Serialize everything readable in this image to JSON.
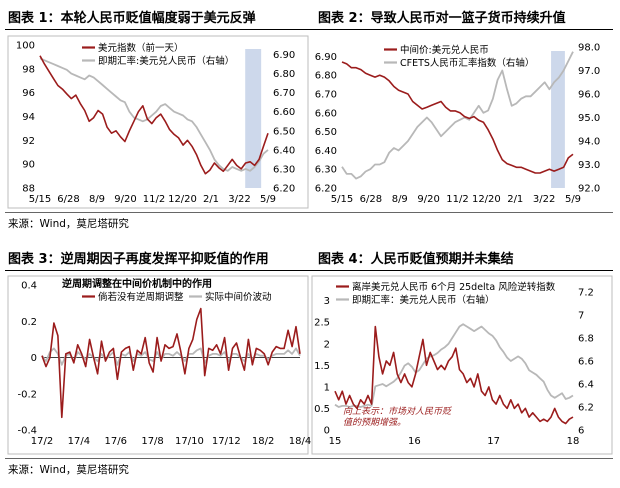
{
  "panels": [
    {
      "title": "图表 1：本轮人民币贬值幅度弱于美元反弹",
      "chart_data": {
        "type": "line",
        "x_ticks": [
          "5/15",
          "6/28",
          "8/9",
          "9/20",
          "11/2",
          "12/20",
          "2/1",
          "3/22",
          "5/9"
        ],
        "ylim_left": [
          88,
          100
        ],
        "yticks_left": [
          88,
          90,
          92,
          94,
          96,
          98,
          100
        ],
        "ylim_right": [
          6.2,
          6.95
        ],
        "yticks_right": [
          "6.20",
          "6.30",
          "6.40",
          "6.50",
          "6.60",
          "6.70",
          "6.80",
          "6.90"
        ],
        "legend": [
          {
            "label": "美元指数（前一天）",
            "color": "#9b1c1c",
            "axis": "left"
          },
          {
            "label": "即期汇率:美元兑人民币（右轴）",
            "color": "#b8b8b8",
            "axis": "right"
          }
        ],
        "highlight": {
          "x_from": 0.9,
          "x_to": 0.97
        },
        "series": [
          {
            "name": "美元指数（前一天）",
            "axis": "left",
            "values": [
              99.1,
              98.4,
              97.8,
              97.2,
              96.6,
              96.3,
              95.9,
              95.5,
              95.8,
              95.1,
              94.5,
              93.6,
              93.9,
              94.5,
              94.2,
              93.1,
              92.6,
              92.8,
              92.3,
              91.9,
              92.8,
              93.6,
              94.4,
              94.9,
              93.8,
              93.4,
              93.9,
              94.2,
              93.6,
              92.9,
              92.5,
              92.2,
              91.6,
              92.0,
              91.5,
              90.8,
              89.9,
              89.2,
              89.5,
              90.1,
              89.7,
              89.4,
              89.9,
              90.4,
              89.9,
              89.6,
              90.1,
              90.2,
              89.9,
              90.4,
              91.5,
              92.6
            ]
          },
          {
            "name": "即期汇率:美元兑人民币（右轴）",
            "axis": "right",
            "values": [
              6.88,
              6.87,
              6.86,
              6.85,
              6.84,
              6.83,
              6.82,
              6.8,
              6.79,
              6.78,
              6.77,
              6.79,
              6.78,
              6.76,
              6.74,
              6.72,
              6.7,
              6.68,
              6.66,
              6.65,
              6.6,
              6.57,
              6.56,
              6.55,
              6.56,
              6.58,
              6.6,
              6.63,
              6.64,
              6.62,
              6.6,
              6.59,
              6.58,
              6.56,
              6.55,
              6.52,
              6.48,
              6.44,
              6.4,
              6.35,
              6.32,
              6.3,
              6.29,
              6.31,
              6.3,
              6.29,
              6.3,
              6.29,
              6.31,
              6.34,
              6.38,
              6.4
            ]
          }
        ]
      },
      "source": "来源：Wind，莫尼塔研究"
    },
    {
      "title": "图表 2：导致人民币对一篮子货币持续升值",
      "chart_data": {
        "type": "line",
        "x_ticks": [
          "5/15",
          "6/28",
          "8/9",
          "9/20",
          "11/2",
          "12/20",
          "2/1",
          "3/22",
          "5/9"
        ],
        "ylim_left": [
          6.2,
          6.95
        ],
        "yticks_left": [
          "6.20",
          "6.30",
          "6.40",
          "6.50",
          "6.60",
          "6.70",
          "6.80",
          "6.90"
        ],
        "ylim_right": [
          92.0,
          98.0
        ],
        "yticks_right": [
          "92.0",
          "93.0",
          "94.0",
          "95.0",
          "96.0",
          "97.0",
          "98.0"
        ],
        "legend": [
          {
            "label": "中间价:美元兑人民币",
            "color": "#9b1c1c",
            "axis": "left"
          },
          {
            "label": "CFETS人民币汇率指数（右轴）",
            "color": "#b8b8b8",
            "axis": "right"
          }
        ],
        "highlight": {
          "x_from": 0.905,
          "x_to": 0.965
        },
        "series": [
          {
            "name": "中间价:美元兑人民币",
            "axis": "left",
            "values": [
              6.87,
              6.86,
              6.84,
              6.84,
              6.83,
              6.81,
              6.8,
              6.79,
              6.8,
              6.79,
              6.77,
              6.74,
              6.72,
              6.71,
              6.7,
              6.66,
              6.64,
              6.62,
              6.63,
              6.64,
              6.65,
              6.66,
              6.63,
              6.61,
              6.61,
              6.6,
              6.58,
              6.57,
              6.58,
              6.56,
              6.55,
              6.51,
              6.46,
              6.4,
              6.35,
              6.33,
              6.32,
              6.31,
              6.31,
              6.3,
              6.29,
              6.28,
              6.28,
              6.29,
              6.3,
              6.29,
              6.3,
              6.31,
              6.36,
              6.38
            ]
          },
          {
            "name": "CFETS人民币汇率指数（右轴）",
            "axis": "right",
            "values": [
              92.9,
              92.6,
              92.6,
              92.4,
              92.5,
              92.7,
              92.8,
              93.0,
              93.0,
              93.1,
              93.5,
              93.7,
              93.6,
              93.8,
              94.0,
              94.3,
              94.6,
              94.8,
              95.0,
              94.8,
              94.5,
              94.2,
              94.4,
              94.6,
              94.8,
              94.9,
              95.0,
              94.9,
              95.2,
              95.5,
              95.2,
              95.3,
              95.8,
              96.6,
              97.0,
              96.2,
              95.5,
              95.6,
              95.8,
              95.9,
              95.9,
              96.1,
              96.3,
              96.5,
              96.2,
              96.5,
              96.7,
              97.0,
              97.4,
              97.8
            ]
          }
        ]
      },
      "source": ""
    },
    {
      "title": "图表 3：逆周期因子再度发挥平抑贬值的作用",
      "chart_data": {
        "type": "line",
        "title": "逆周期调整在中间价机制中的作用",
        "x_ticks": [
          "17/2",
          "17/4",
          "17/6",
          "17/8",
          "17/10",
          "17/12",
          "18/2",
          "18/4"
        ],
        "ylim_left": [
          -0.4,
          0.4
        ],
        "yticks_left": [
          "-0.4",
          "-0.2",
          "0",
          "0.2",
          "0.4"
        ],
        "legend": [
          {
            "label": "倘若没有逆周期调整",
            "color": "#9b1c1c"
          },
          {
            "label": "实际中间价波动",
            "color": "#b8b8b8"
          }
        ],
        "series": [
          {
            "name": "倘若没有逆周期调整",
            "values": [
              0.01,
              -0.05,
              0.0,
              0.19,
              0.12,
              -0.33,
              0.02,
              0.03,
              -0.03,
              0.07,
              0.02,
              -0.05,
              0.1,
              0.0,
              -0.09,
              0.09,
              -0.02,
              0.03,
              0.05,
              -0.12,
              0.03,
              0.05,
              0.06,
              -0.07,
              0.04,
              0.02,
              0.11,
              -0.03,
              -0.08,
              0.11,
              -0.02,
              0.07,
              0.05,
              0.06,
              0.13,
              0.03,
              -0.09,
              0.05,
              0.1,
              0.21,
              0.27,
              -0.1,
              0.05,
              0.04,
              0.07,
              0.02,
              0.11,
              -0.07,
              0.05,
              0.08,
              0.0,
              -0.07,
              0.1,
              -0.04,
              0.05,
              0.04,
              0.02,
              -0.04,
              0.03,
              0.06,
              0.05,
              0.05,
              0.15,
              0.06,
              0.17,
              0.02
            ]
          },
          {
            "name": "实际中间价波动",
            "values": [
              0.01,
              -0.02,
              0.03,
              0.05,
              0.02,
              -0.04,
              0.01,
              0.02,
              -0.02,
              0.03,
              0.01,
              -0.01,
              0.02,
              0.0,
              -0.02,
              0.02,
              -0.01,
              0.01,
              0.03,
              -0.04,
              0.02,
              0.01,
              0.03,
              -0.02,
              0.02,
              0.01,
              0.03,
              -0.01,
              -0.02,
              0.03,
              -0.01,
              0.02,
              0.02,
              0.01,
              0.03,
              0.01,
              -0.02,
              0.02,
              0.02,
              0.04,
              0.05,
              -0.03,
              0.01,
              0.02,
              0.02,
              0.01,
              0.03,
              -0.02,
              0.02,
              0.02,
              0.0,
              -0.02,
              0.02,
              -0.01,
              0.02,
              0.01,
              0.01,
              -0.01,
              0.01,
              0.02,
              0.02,
              0.02,
              0.04,
              0.02,
              0.05,
              0.01
            ]
          }
        ]
      },
      "source": "来源：Wind，莫尼塔研究"
    },
    {
      "title": "图表 4：人民币贬值预期并未集结",
      "chart_data": {
        "type": "line",
        "x_ticks": [
          "15",
          "16",
          "17",
          "18"
        ],
        "ylim_left": [
          0,
          3.2
        ],
        "yticks_left": [
          "0",
          "0.5",
          "1",
          "1.5",
          "2",
          "2.5",
          "3"
        ],
        "ylim_right": [
          6.0,
          7.2
        ],
        "yticks_right": [
          "6",
          "6.2",
          "6.4",
          "6.6",
          "6.8",
          "7",
          "7.2"
        ],
        "legend": [
          {
            "label": "离岸美元兑人民币 6个月 25delta 风险逆转指数",
            "color": "#9b1c1c",
            "axis": "left"
          },
          {
            "label": "即期汇率：美元兑人民币（右轴）",
            "color": "#b8b8b8",
            "axis": "right"
          }
        ],
        "annotation": [
          "向上表示：市场对人民币贬",
          "值的预期增强。"
        ],
        "series": [
          {
            "name": "离岸美元兑人民币 6个月 25delta 风险逆转指数",
            "axis": "left",
            "values": [
              0.9,
              0.7,
              0.9,
              0.6,
              0.8,
              0.6,
              0.5,
              0.7,
              0.6,
              0.8,
              0.6,
              2.4,
              1.7,
              1.3,
              1.6,
              1.5,
              1.8,
              1.3,
              1.1,
              1.3,
              1.1,
              1.0,
              1.3,
              1.7,
              2.1,
              1.5,
              1.8,
              1.6,
              1.4,
              1.5,
              1.4,
              1.6,
              1.7,
              1.9,
              1.4,
              1.3,
              1.1,
              1.2,
              1.0,
              1.3,
              0.9,
              0.8,
              1.0,
              0.7,
              0.6,
              0.8,
              0.6,
              0.5,
              0.7,
              0.5,
              0.6,
              0.4,
              0.5,
              0.3,
              0.4,
              0.3,
              0.2,
              0.25,
              0.2,
              0.3,
              0.5,
              0.3,
              0.2,
              0.15,
              0.25,
              0.3
            ]
          },
          {
            "name": "即期汇率：美元兑人民币（右轴）",
            "axis": "right",
            "values": [
              6.22,
              6.2,
              6.21,
              6.21,
              6.2,
              6.21,
              6.21,
              6.2,
              6.21,
              6.22,
              6.21,
              6.38,
              6.39,
              6.4,
              6.38,
              6.4,
              6.42,
              6.45,
              6.5,
              6.56,
              6.58,
              6.55,
              6.5,
              6.52,
              6.57,
              6.62,
              6.64,
              6.65,
              6.67,
              6.7,
              6.72,
              6.75,
              6.8,
              6.85,
              6.9,
              6.92,
              6.9,
              6.88,
              6.86,
              6.88,
              6.9,
              6.87,
              6.84,
              6.82,
              6.78,
              6.72,
              6.68,
              6.63,
              6.6,
              6.62,
              6.64,
              6.62,
              6.58,
              6.52,
              6.5,
              6.48,
              6.45,
              6.42,
              6.35,
              6.3,
              6.28,
              6.3,
              6.32,
              6.27,
              6.28,
              6.3
            ]
          }
        ]
      },
      "source": "来源：Wind，莫尼塔研究"
    }
  ]
}
